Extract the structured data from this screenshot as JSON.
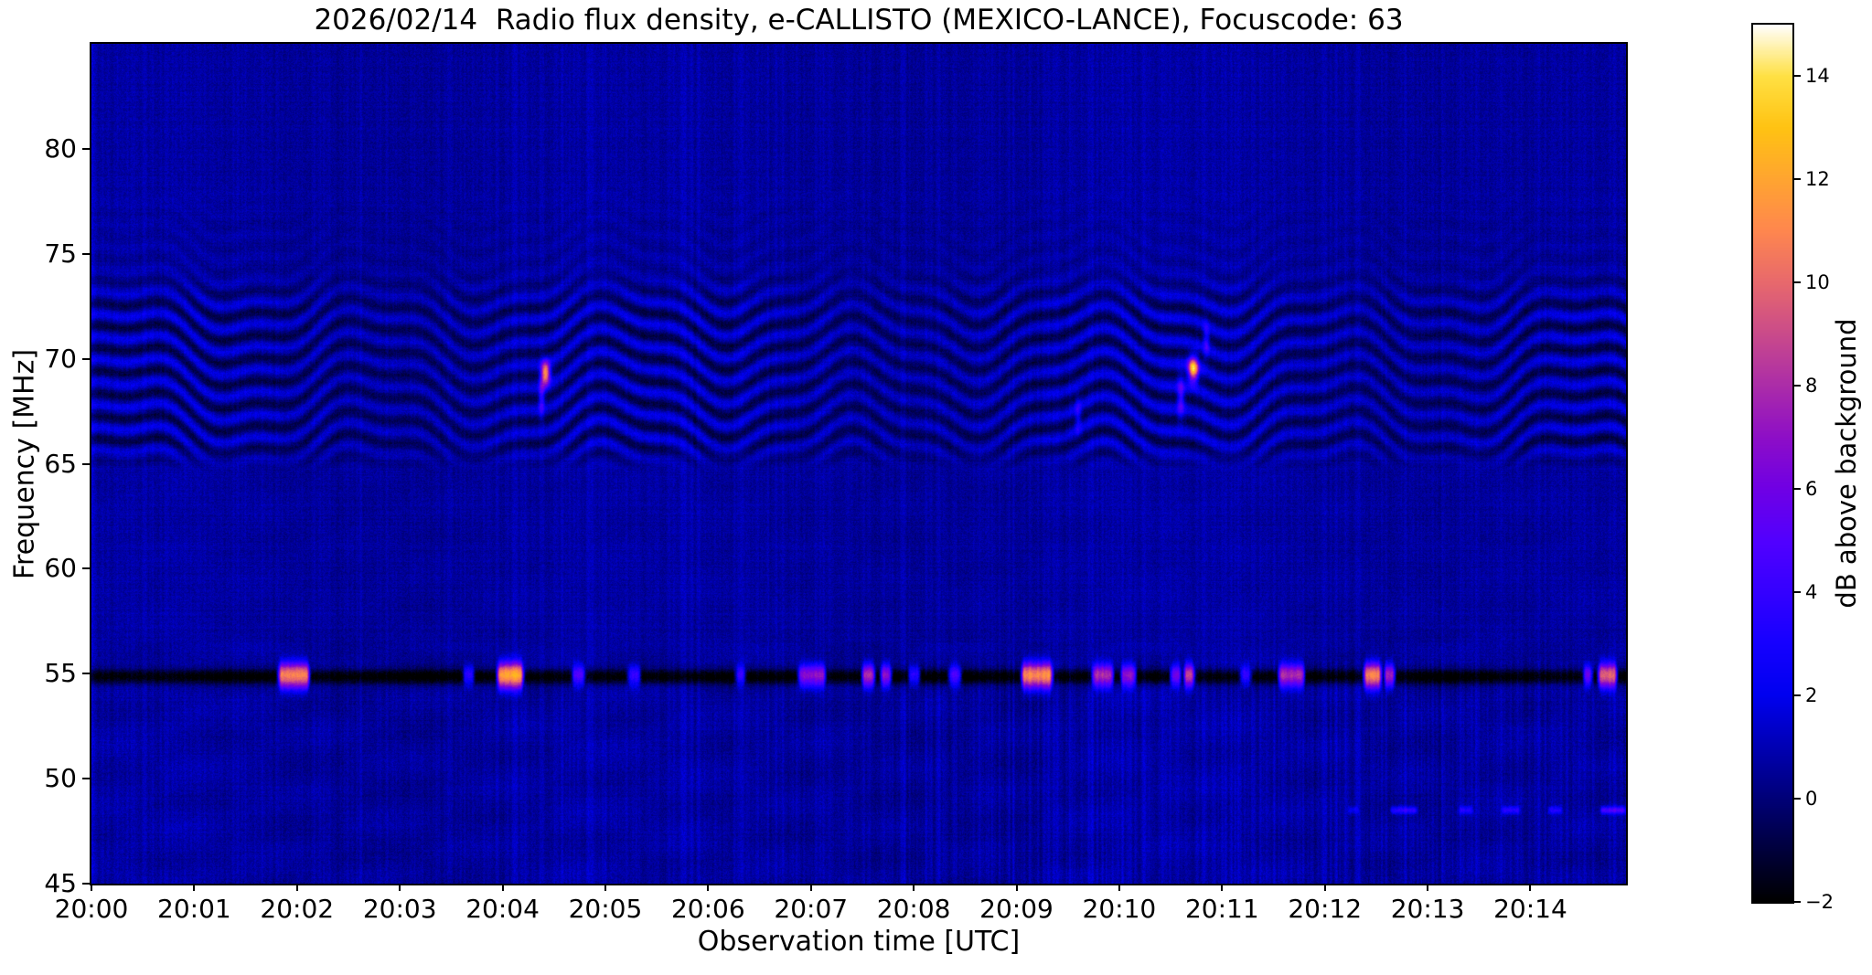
{
  "chart_data": {
    "type": "heatmap",
    "subtype": "radio-spectrogram",
    "title": "2026/02/14  Radio flux density, e-CALLISTO (MEXICO-LANCE), Focuscode: 63",
    "date": "2026/02/14",
    "instrument": "e-CALLISTO",
    "station": "MEXICO-LANCE",
    "focuscode": "63",
    "grid": false,
    "x_axis": {
      "label": "Observation time [UTC]",
      "range_minutes": [
        0,
        14.93
      ],
      "ticks": [
        {
          "label": "20:00",
          "minute": 0
        },
        {
          "label": "20:01",
          "minute": 1
        },
        {
          "label": "20:02",
          "minute": 2
        },
        {
          "label": "20:03",
          "minute": 3
        },
        {
          "label": "20:04",
          "minute": 4
        },
        {
          "label": "20:05",
          "minute": 5
        },
        {
          "label": "20:06",
          "minute": 6
        },
        {
          "label": "20:07",
          "minute": 7
        },
        {
          "label": "20:08",
          "minute": 8
        },
        {
          "label": "20:09",
          "minute": 9
        },
        {
          "label": "20:10",
          "minute": 10
        },
        {
          "label": "20:11",
          "minute": 11
        },
        {
          "label": "20:12",
          "minute": 12
        },
        {
          "label": "20:13",
          "minute": 13
        },
        {
          "label": "20:14",
          "minute": 14
        }
      ]
    },
    "y_axis": {
      "label": "Frequency [MHz]",
      "range_mhz": [
        45,
        85
      ],
      "ticks": [
        {
          "label": "45",
          "mhz": 45
        },
        {
          "label": "50",
          "mhz": 50
        },
        {
          "label": "55",
          "mhz": 55
        },
        {
          "label": "60",
          "mhz": 60
        },
        {
          "label": "65",
          "mhz": 65
        },
        {
          "label": "70",
          "mhz": 70
        },
        {
          "label": "75",
          "mhz": 75
        },
        {
          "label": "80",
          "mhz": 80
        }
      ]
    },
    "colorbar": {
      "label": "dB above background",
      "range_db": [
        -2,
        15
      ],
      "ticks": [
        {
          "label": "−2",
          "db": -2
        },
        {
          "label": "0",
          "db": 0
        },
        {
          "label": "2",
          "db": 2
        },
        {
          "label": "4",
          "db": 4
        },
        {
          "label": "6",
          "db": 6
        },
        {
          "label": "8",
          "db": 8
        },
        {
          "label": "10",
          "db": 10
        },
        {
          "label": "12",
          "db": 12
        },
        {
          "label": "14",
          "db": 14
        }
      ]
    },
    "colormap_name": "gnuplot2-like (black-blue-violet-magenta-salmon-orange-yellow-white)",
    "colormap_stops": [
      [
        -2,
        "#000000"
      ],
      [
        -1,
        "#00003c"
      ],
      [
        0,
        "#000078"
      ],
      [
        1,
        "#0000b4"
      ],
      [
        2,
        "#0000f0"
      ],
      [
        3,
        "#1600ff"
      ],
      [
        4,
        "#3500ff"
      ],
      [
        5,
        "#5200ff"
      ],
      [
        6,
        "#7000e5"
      ],
      [
        7,
        "#8e0fc7"
      ],
      [
        8,
        "#ac2da9"
      ],
      [
        9,
        "#ca4b8b"
      ],
      [
        10,
        "#e8696d"
      ],
      [
        11,
        "#ff874f"
      ],
      [
        12,
        "#ffa531"
      ],
      [
        13,
        "#ffc313"
      ],
      [
        14,
        "#ffe144"
      ],
      [
        14.5,
        "#fff0a1"
      ],
      [
        15,
        "#ffffff"
      ]
    ],
    "features": [
      {
        "type": "background_noise",
        "base_db": 0.62,
        "pixel_noise_db": 0.5,
        "row_noise_db": 0.14,
        "column_streak_db": 0.34,
        "low_band_f_max_mhz": 55.6,
        "low_band_streak_db": 0.44,
        "low_band_boost_after_min": 7.9,
        "low_band_boost_streak_db": 0.62,
        "slow_variation_db": 0.1,
        "edge_column_t_max_min": 0.07,
        "edge_column_amp_db": 1.0
      },
      {
        "type": "interference_ripples",
        "f_lo_fade_mhz": 64.6,
        "f_full_lo_mhz": 66.0,
        "f_full_hi_mhz": 72.3,
        "f_hi_fade_mhz": 74.2,
        "faint_level": 0.22,
        "faint_top_mhz": 79.0,
        "stripe_spacing_mhz": 1.08,
        "wave_amp_mhz": 1.0,
        "wave_period_min": 2.35,
        "wave_phase": 0.6,
        "wave2_amp_mhz": 0.3,
        "wave2_period_min": 0.83,
        "wave2_phase": 2.1,
        "strength_db": 1.15,
        "bias_db": -0.18,
        "contrast_mod": 0.22,
        "contrast_period_min": 4.8
      },
      {
        "type": "absorption_line",
        "f_mhz": 54.85,
        "sigma_mhz": 0.36,
        "depth_db": 2.9
      },
      {
        "type": "rfi_bursts_on_line",
        "f_mhz": 54.9,
        "sigma_base_mhz": 0.3,
        "sigma_per_db": 0.02,
        "edge_min": 0.03,
        "bursts": [
          [
            1.82,
            2.12,
            13
          ],
          [
            3.62,
            3.72,
            6
          ],
          [
            3.95,
            4.2,
            14
          ],
          [
            4.68,
            4.8,
            7
          ],
          [
            5.22,
            5.34,
            6
          ],
          [
            6.27,
            6.36,
            6
          ],
          [
            6.88,
            7.14,
            9
          ],
          [
            7.5,
            7.62,
            10
          ],
          [
            7.68,
            7.78,
            9
          ],
          [
            7.95,
            8.06,
            6
          ],
          [
            8.34,
            8.46,
            7
          ],
          [
            9.05,
            9.35,
            13
          ],
          [
            9.74,
            9.94,
            10
          ],
          [
            10.02,
            10.16,
            9
          ],
          [
            10.5,
            10.6,
            8
          ],
          [
            10.63,
            10.73,
            11
          ],
          [
            11.18,
            11.28,
            6
          ],
          [
            11.55,
            11.8,
            10
          ],
          [
            12.38,
            12.55,
            13
          ],
          [
            12.58,
            12.68,
            10
          ],
          [
            14.52,
            14.6,
            8
          ],
          [
            14.66,
            14.84,
            12
          ]
        ]
      },
      {
        "type": "point_bursts",
        "blobs": [
          [
            4.42,
            69.3,
            0.045,
            0.55,
            12
          ],
          [
            10.72,
            69.5,
            0.05,
            0.6,
            13
          ],
          [
            4.38,
            68.2,
            0.03,
            0.9,
            4
          ],
          [
            10.6,
            68.2,
            0.035,
            1.0,
            4.5
          ],
          [
            10.85,
            70.9,
            0.03,
            0.8,
            3.5
          ],
          [
            9.6,
            67.3,
            0.03,
            0.9,
            3
          ]
        ]
      },
      {
        "type": "dashed_line",
        "f_mhz": 48.5,
        "sigma_mhz": 0.18,
        "edge_min": 0.05,
        "dashes": [
          [
            12.2,
            12.35,
            1.8
          ],
          [
            12.62,
            12.92,
            3.2
          ],
          [
            13.28,
            13.46,
            2.6
          ],
          [
            13.7,
            13.92,
            2.8
          ],
          [
            14.15,
            14.33,
            2.6
          ],
          [
            14.66,
            14.95,
            4.2
          ]
        ]
      },
      {
        "type": "moire_texture",
        "f_min_mhz": 45,
        "f_max_mhz": 56.5,
        "amp_db": 0.22,
        "period_t1_min": 2.3,
        "period_f1_mhz": 3.2,
        "period_t2_min": 1.7,
        "period_f2_mhz": 2.6
      },
      {
        "type": "moire_texture",
        "f_min_mhz": 56.5,
        "f_max_mhz": 64.8,
        "amp_db": 0.1,
        "period_t1_min": 2.1,
        "period_f1_mhz": 3.6,
        "period_t2_min": 1.5,
        "period_f2_mhz": 3.0
      }
    ]
  }
}
